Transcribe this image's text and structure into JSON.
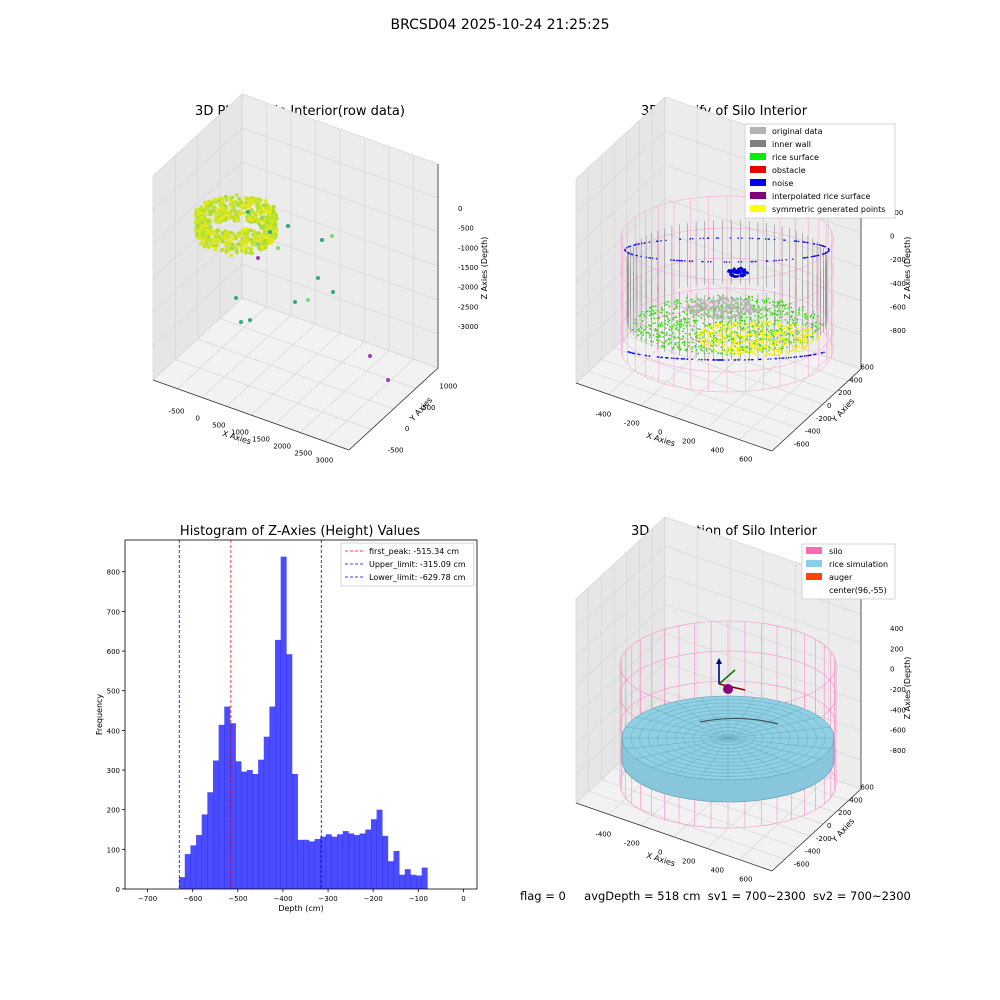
{
  "suptitle": "BRCSD04 2025-10-24 21:25:25",
  "panel_raw": {
    "title": "3D Plot of Silo Interior(row data)",
    "x_label": "X Axies",
    "y_label": "Y Axies",
    "z_label": "Z Axies (Depth)",
    "x_ticks": [
      "-500",
      "0",
      "500",
      "1000",
      "1500",
      "2000",
      "2500",
      "3000"
    ],
    "y_ticks": [
      "-500",
      "0",
      "500",
      "1000"
    ],
    "z_ticks": [
      "0",
      "-500",
      "-1000",
      "-1500",
      "-2000",
      "-2500",
      "-3000"
    ]
  },
  "panel_classify": {
    "title": "3D classify of Silo Interior",
    "x_label": "X Axies",
    "y_label": "Y Axies",
    "z_label": "Z Axies (Depth)",
    "x_ticks": [
      "-400",
      "-200",
      "0",
      "200",
      "400",
      "600"
    ],
    "y_ticks": [
      "-600",
      "-400",
      "-200",
      "0",
      "200",
      "400",
      "600"
    ],
    "z_ticks": [
      "200",
      "0",
      "-200",
      "-400",
      "-600",
      "-800"
    ],
    "legend": [
      {
        "label": "original data",
        "color": "#b4b4b4"
      },
      {
        "label": "inner wall",
        "color": "#808080"
      },
      {
        "label": "rice surface",
        "color": "#00ee00"
      },
      {
        "label": "obstacle",
        "color": "#ee0000"
      },
      {
        "label": "noise",
        "color": "#0000ee"
      },
      {
        "label": "interpolated rice surface",
        "color": "#800080"
      },
      {
        "label": "symmetric generated points",
        "color": "#ffff00"
      }
    ]
  },
  "panel_sim": {
    "title": "3D simulation of Silo Interior",
    "x_label": "X Axies",
    "y_label": "Y Axies",
    "z_label": "Z Axies (Depth)",
    "x_ticks": [
      "-400",
      "-200",
      "0",
      "200",
      "400",
      "600"
    ],
    "y_ticks": [
      "-600",
      "-400",
      "-200",
      "0",
      "200",
      "400",
      "600"
    ],
    "z_ticks": [
      "400",
      "200",
      "0",
      "-200",
      "-400",
      "-600",
      "-800"
    ],
    "legend": [
      {
        "label": "silo",
        "color": "#ff69b4"
      },
      {
        "label": "rice simulation",
        "color": "#87ceeb"
      },
      {
        "label": "auger",
        "color": "#ff4500"
      },
      {
        "label": "center(96,-55)",
        "color": ""
      }
    ]
  },
  "status": {
    "flag": "flag = 0",
    "avg": "avgDepth = 518 cm",
    "sv1": "sv1 = 700~2300",
    "sv2": "sv2 = 700~2300"
  },
  "chart_data": [
    {
      "type": "histogram",
      "title": "Histogram of Z-Axies (Height) Values",
      "xlabel": "Depth (cm)",
      "ylabel": "Frequency",
      "xlim": [
        -750,
        30
      ],
      "ylim": [
        0,
        880
      ],
      "grid": false,
      "legend_position": "top-right",
      "x_ticks": [
        -700,
        -600,
        -500,
        -400,
        -300,
        -200,
        -100,
        0
      ],
      "y_ticks": [
        0,
        100,
        200,
        300,
        400,
        500,
        600,
        700,
        800
      ],
      "bar_color": "#0000ff",
      "bin_start": -630,
      "bin_width": 12.5,
      "counts": [
        30,
        88,
        110,
        136,
        188,
        244,
        324,
        414,
        460,
        418,
        322,
        296,
        300,
        290,
        326,
        384,
        460,
        628,
        838,
        592,
        290,
        124,
        124,
        120,
        126,
        132,
        138,
        132,
        138,
        146,
        140,
        136,
        140,
        150,
        176,
        200,
        134,
        70,
        96,
        36,
        50,
        36,
        34,
        54
      ],
      "lines": [
        {
          "label": "first_peak: -515.34 cm",
          "x": -515.34,
          "color": "#ff0000"
        },
        {
          "label": "Upper_limit: -315.09 cm",
          "x": -315.09,
          "color": "#0000ff"
        },
        {
          "label": "Lower_limit: -629.78 cm",
          "x": -629.78,
          "color": "#0000ff"
        }
      ]
    }
  ]
}
